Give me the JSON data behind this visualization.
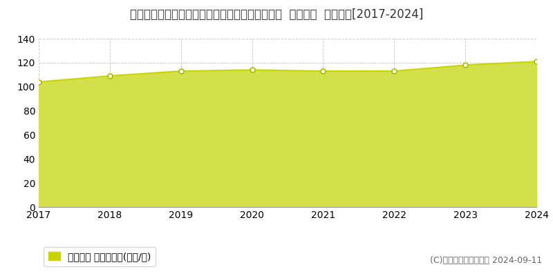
{
  "title": "埼玉県さいたま市中央区鈴谷２丁目７４４番１外  地価公示  地価推移[2017-2024]",
  "years": [
    2017,
    2018,
    2019,
    2020,
    2021,
    2022,
    2023,
    2024
  ],
  "values": [
    104.0,
    109.0,
    113.0,
    114.0,
    113.0,
    113.0,
    118.0,
    121.0
  ],
  "ylim": [
    0,
    140
  ],
  "yticks": [
    0,
    20,
    40,
    60,
    80,
    100,
    120,
    140
  ],
  "line_color": "#c8d400",
  "fill_color": "#d4e04a",
  "marker_face_color": "#ffffff",
  "marker_edge_color": "#aab800",
  "background_color": "#ffffff",
  "plot_bg_color": "#ffffff",
  "grid_color": "#cccccc",
  "legend_label": "地価公示 平均坪単価(万円/坪)",
  "legend_square_color": "#c8d400",
  "copyright_text": "(C)土地価格ドットコム 2024-09-11",
  "title_fontsize": 12,
  "tick_fontsize": 10,
  "legend_fontsize": 10,
  "copyright_fontsize": 9
}
